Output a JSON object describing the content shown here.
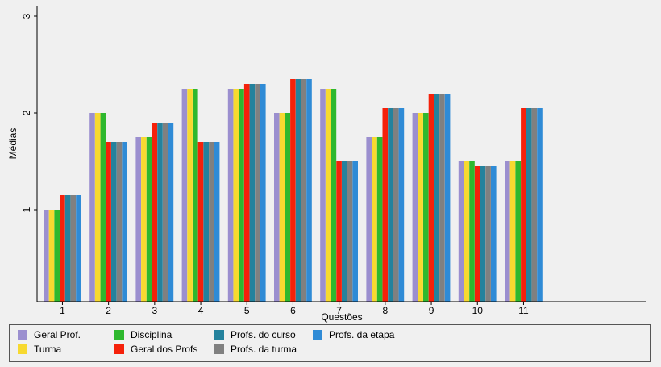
{
  "chart_data": {
    "type": "bar",
    "title": "",
    "xlabel": "Questões",
    "ylabel": "Médias",
    "ylim": [
      0.05,
      3.1
    ],
    "yticks": [
      "1",
      "2",
      "3"
    ],
    "categories": [
      "1",
      "2",
      "3",
      "4",
      "5",
      "6",
      "7",
      "8",
      "9",
      "10",
      "11"
    ],
    "grid": false,
    "legend_position": "bottom",
    "series": [
      {
        "name": "Geral Prof.",
        "color": "#9b8fcf",
        "values": [
          1.0,
          2.0,
          1.75,
          2.25,
          2.25,
          2.0,
          2.25,
          1.75,
          2.0,
          1.5,
          1.5
        ]
      },
      {
        "name": "Turma",
        "color": "#f7d930",
        "values": [
          1.0,
          2.0,
          1.75,
          2.25,
          2.25,
          2.0,
          2.25,
          1.75,
          2.0,
          1.5,
          1.5
        ]
      },
      {
        "name": "Disciplina",
        "color": "#2eb82e",
        "values": [
          1.0,
          2.0,
          1.75,
          2.25,
          2.25,
          2.0,
          2.25,
          1.75,
          2.0,
          1.5,
          1.5
        ]
      },
      {
        "name": "Geral dos Profs",
        "color": "#f5210a",
        "values": [
          1.15,
          1.7,
          1.9,
          1.7,
          2.3,
          2.35,
          1.5,
          2.05,
          2.2,
          1.45,
          2.05
        ]
      },
      {
        "name": "Profs. do curso",
        "color": "#24829d",
        "values": [
          1.15,
          1.7,
          1.9,
          1.7,
          2.3,
          2.35,
          1.5,
          2.05,
          2.2,
          1.45,
          2.05
        ]
      },
      {
        "name": "Profs. da turma",
        "color": "#808080",
        "values": [
          1.15,
          1.7,
          1.9,
          1.7,
          2.3,
          2.35,
          1.5,
          2.05,
          2.2,
          1.45,
          2.05
        ]
      },
      {
        "name": "Profs. da etapa",
        "color": "#2f8bd6",
        "values": [
          1.15,
          1.7,
          1.9,
          1.7,
          2.3,
          2.35,
          1.5,
          2.05,
          2.2,
          1.45,
          2.05
        ]
      }
    ]
  }
}
